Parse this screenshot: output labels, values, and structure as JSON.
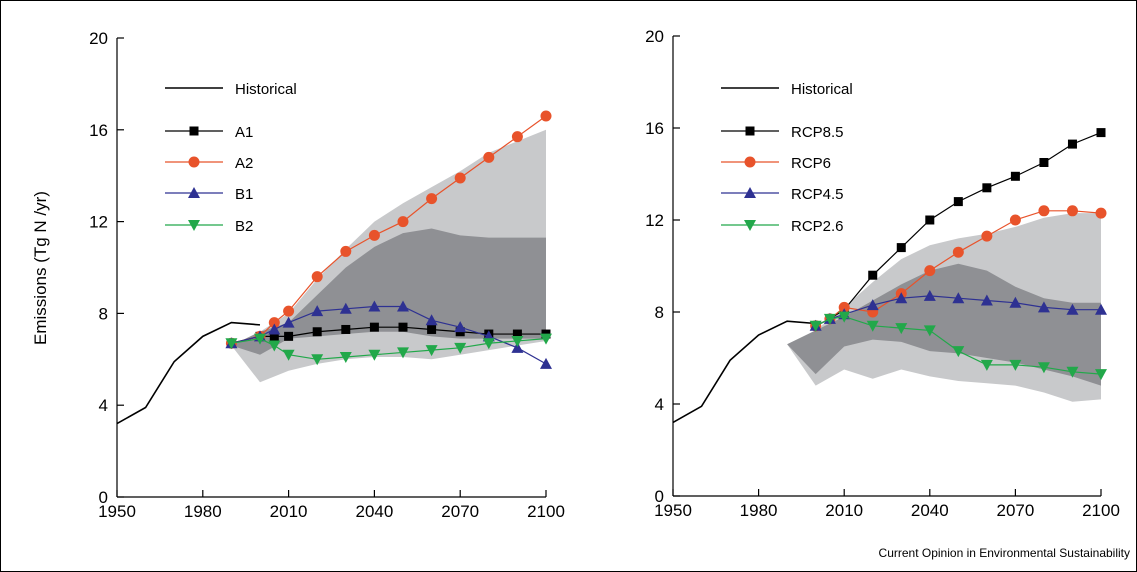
{
  "figure": {
    "ylabel": "Emissions (Tg N /yr)",
    "source": "Current Opinion in Environmental Sustainability"
  },
  "chart_data": [
    {
      "type": "line",
      "panel": "left",
      "xlim": [
        1950,
        2100
      ],
      "ylim": [
        0,
        20
      ],
      "x_ticks": [
        1950,
        1980,
        2010,
        2040,
        2070,
        2100
      ],
      "y_ticks": [
        0,
        4,
        8,
        12,
        16,
        20
      ],
      "ylabel": "Emissions (Tg N /yr)",
      "legend_position": "top-left",
      "grid": false,
      "bands": [
        {
          "color": "#c8c9cb",
          "x": [
            1990,
            2000,
            2010,
            2020,
            2030,
            2040,
            2050,
            2060,
            2070,
            2080,
            2090,
            2100
          ],
          "upper": [
            6.6,
            7.2,
            8.0,
            9.5,
            10.8,
            12.0,
            12.8,
            13.5,
            14.2,
            15.0,
            15.5,
            16.0
          ],
          "lower": [
            6.6,
            5.0,
            5.5,
            5.8,
            6.0,
            6.1,
            6.1,
            6.0,
            6.2,
            6.4,
            6.6,
            6.8
          ]
        },
        {
          "color": "#8f9094",
          "x": [
            1990,
            2000,
            2010,
            2020,
            2030,
            2040,
            2050,
            2060,
            2070,
            2080,
            2090,
            2100
          ],
          "upper": [
            6.6,
            7.2,
            7.6,
            8.8,
            10.0,
            10.9,
            11.5,
            11.7,
            11.4,
            11.3,
            11.3,
            11.3
          ],
          "lower": [
            6.6,
            6.2,
            6.9,
            7.0,
            7.1,
            7.2,
            7.2,
            7.0,
            6.9,
            6.9,
            6.9,
            6.9
          ]
        }
      ],
      "series": [
        {
          "name": "Historical",
          "color": "#000000",
          "marker": "none",
          "x": [
            1950,
            1960,
            1970,
            1980,
            1990,
            2000
          ],
          "y": [
            3.2,
            3.9,
            5.9,
            7.0,
            7.6,
            7.5
          ]
        },
        {
          "name": "A1",
          "color": "#000000",
          "marker": "square",
          "x": [
            1990,
            2000,
            2005,
            2010,
            2020,
            2030,
            2040,
            2050,
            2060,
            2070,
            2080,
            2090,
            2100
          ],
          "y": [
            6.7,
            7.0,
            7.0,
            7.0,
            7.2,
            7.3,
            7.4,
            7.4,
            7.3,
            7.2,
            7.1,
            7.1,
            7.1
          ]
        },
        {
          "name": "A2",
          "color": "#e8532b",
          "marker": "circle",
          "x": [
            1990,
            2000,
            2005,
            2010,
            2020,
            2030,
            2040,
            2050,
            2060,
            2070,
            2080,
            2090,
            2100
          ],
          "y": [
            6.7,
            7.0,
            7.6,
            8.1,
            9.6,
            10.7,
            11.4,
            12.0,
            13.0,
            13.9,
            14.8,
            15.7,
            16.6
          ]
        },
        {
          "name": "B1",
          "color": "#2e3192",
          "marker": "triangle-up",
          "x": [
            1990,
            2000,
            2005,
            2010,
            2020,
            2030,
            2040,
            2050,
            2060,
            2070,
            2080,
            2090,
            2100
          ],
          "y": [
            6.7,
            7.0,
            7.3,
            7.6,
            8.1,
            8.2,
            8.3,
            8.3,
            7.7,
            7.4,
            7.0,
            6.5,
            5.8
          ]
        },
        {
          "name": "B2",
          "color": "#22a84a",
          "marker": "triangle-down",
          "x": [
            1990,
            2000,
            2005,
            2010,
            2020,
            2030,
            2040,
            2050,
            2060,
            2070,
            2080,
            2090,
            2100
          ],
          "y": [
            6.7,
            6.9,
            6.6,
            6.2,
            6.0,
            6.1,
            6.2,
            6.3,
            6.4,
            6.5,
            6.7,
            6.8,
            6.9
          ]
        }
      ]
    },
    {
      "type": "line",
      "panel": "right",
      "xlim": [
        1950,
        2100
      ],
      "ylim": [
        0,
        20
      ],
      "x_ticks": [
        1950,
        1980,
        2010,
        2040,
        2070,
        2100
      ],
      "y_ticks": [
        0,
        4,
        8,
        12,
        16,
        20
      ],
      "legend_position": "top-left",
      "grid": false,
      "bands": [
        {
          "color": "#c8c9cb",
          "x": [
            1990,
            2000,
            2010,
            2020,
            2030,
            2040,
            2050,
            2060,
            2070,
            2080,
            2090,
            2100
          ],
          "upper": [
            6.6,
            7.2,
            8.2,
            9.3,
            10.3,
            10.9,
            11.2,
            11.4,
            11.7,
            12.1,
            12.3,
            12.3
          ],
          "lower": [
            6.6,
            4.8,
            5.5,
            5.1,
            5.5,
            5.2,
            5.0,
            4.9,
            4.8,
            4.5,
            4.1,
            4.2
          ]
        },
        {
          "color": "#8f9094",
          "x": [
            1990,
            2000,
            2010,
            2020,
            2030,
            2040,
            2050,
            2060,
            2070,
            2080,
            2090,
            2100
          ],
          "upper": [
            6.6,
            7.2,
            7.8,
            8.5,
            9.2,
            9.8,
            10.1,
            9.8,
            9.1,
            8.6,
            8.4,
            8.4
          ],
          "lower": [
            6.6,
            5.3,
            6.5,
            6.8,
            6.7,
            6.3,
            6.2,
            6.0,
            5.8,
            5.5,
            5.2,
            4.8
          ]
        }
      ],
      "series": [
        {
          "name": "Historical",
          "color": "#000000",
          "marker": "none",
          "x": [
            1950,
            1960,
            1970,
            1980,
            1990,
            2000
          ],
          "y": [
            3.2,
            3.9,
            5.9,
            7.0,
            7.6,
            7.5
          ]
        },
        {
          "name": "RCP8.5",
          "color": "#000000",
          "marker": "square",
          "x": [
            2000,
            2005,
            2010,
            2020,
            2030,
            2040,
            2050,
            2060,
            2070,
            2080,
            2090,
            2100
          ],
          "y": [
            7.4,
            7.7,
            8.1,
            9.6,
            10.8,
            12.0,
            12.8,
            13.4,
            13.9,
            14.5,
            15.3,
            15.8
          ]
        },
        {
          "name": "RCP6",
          "color": "#e8532b",
          "marker": "circle",
          "x": [
            2000,
            2005,
            2010,
            2020,
            2030,
            2040,
            2050,
            2060,
            2070,
            2080,
            2090,
            2100
          ],
          "y": [
            7.4,
            7.7,
            8.2,
            8.0,
            8.8,
            9.8,
            10.6,
            11.3,
            12.0,
            12.4,
            12.4,
            12.3
          ]
        },
        {
          "name": "RCP4.5",
          "color": "#2e3192",
          "marker": "triangle-up",
          "x": [
            2000,
            2005,
            2010,
            2020,
            2030,
            2040,
            2050,
            2060,
            2070,
            2080,
            2090,
            2100
          ],
          "y": [
            7.4,
            7.7,
            7.9,
            8.3,
            8.6,
            8.7,
            8.6,
            8.5,
            8.4,
            8.2,
            8.1,
            8.1
          ]
        },
        {
          "name": "RCP2.6",
          "color": "#22a84a",
          "marker": "triangle-down",
          "x": [
            2000,
            2005,
            2010,
            2020,
            2030,
            2040,
            2050,
            2060,
            2070,
            2080,
            2090,
            2100
          ],
          "y": [
            7.4,
            7.7,
            7.8,
            7.4,
            7.3,
            7.2,
            6.3,
            5.7,
            5.7,
            5.6,
            5.4,
            5.3
          ]
        }
      ]
    }
  ]
}
